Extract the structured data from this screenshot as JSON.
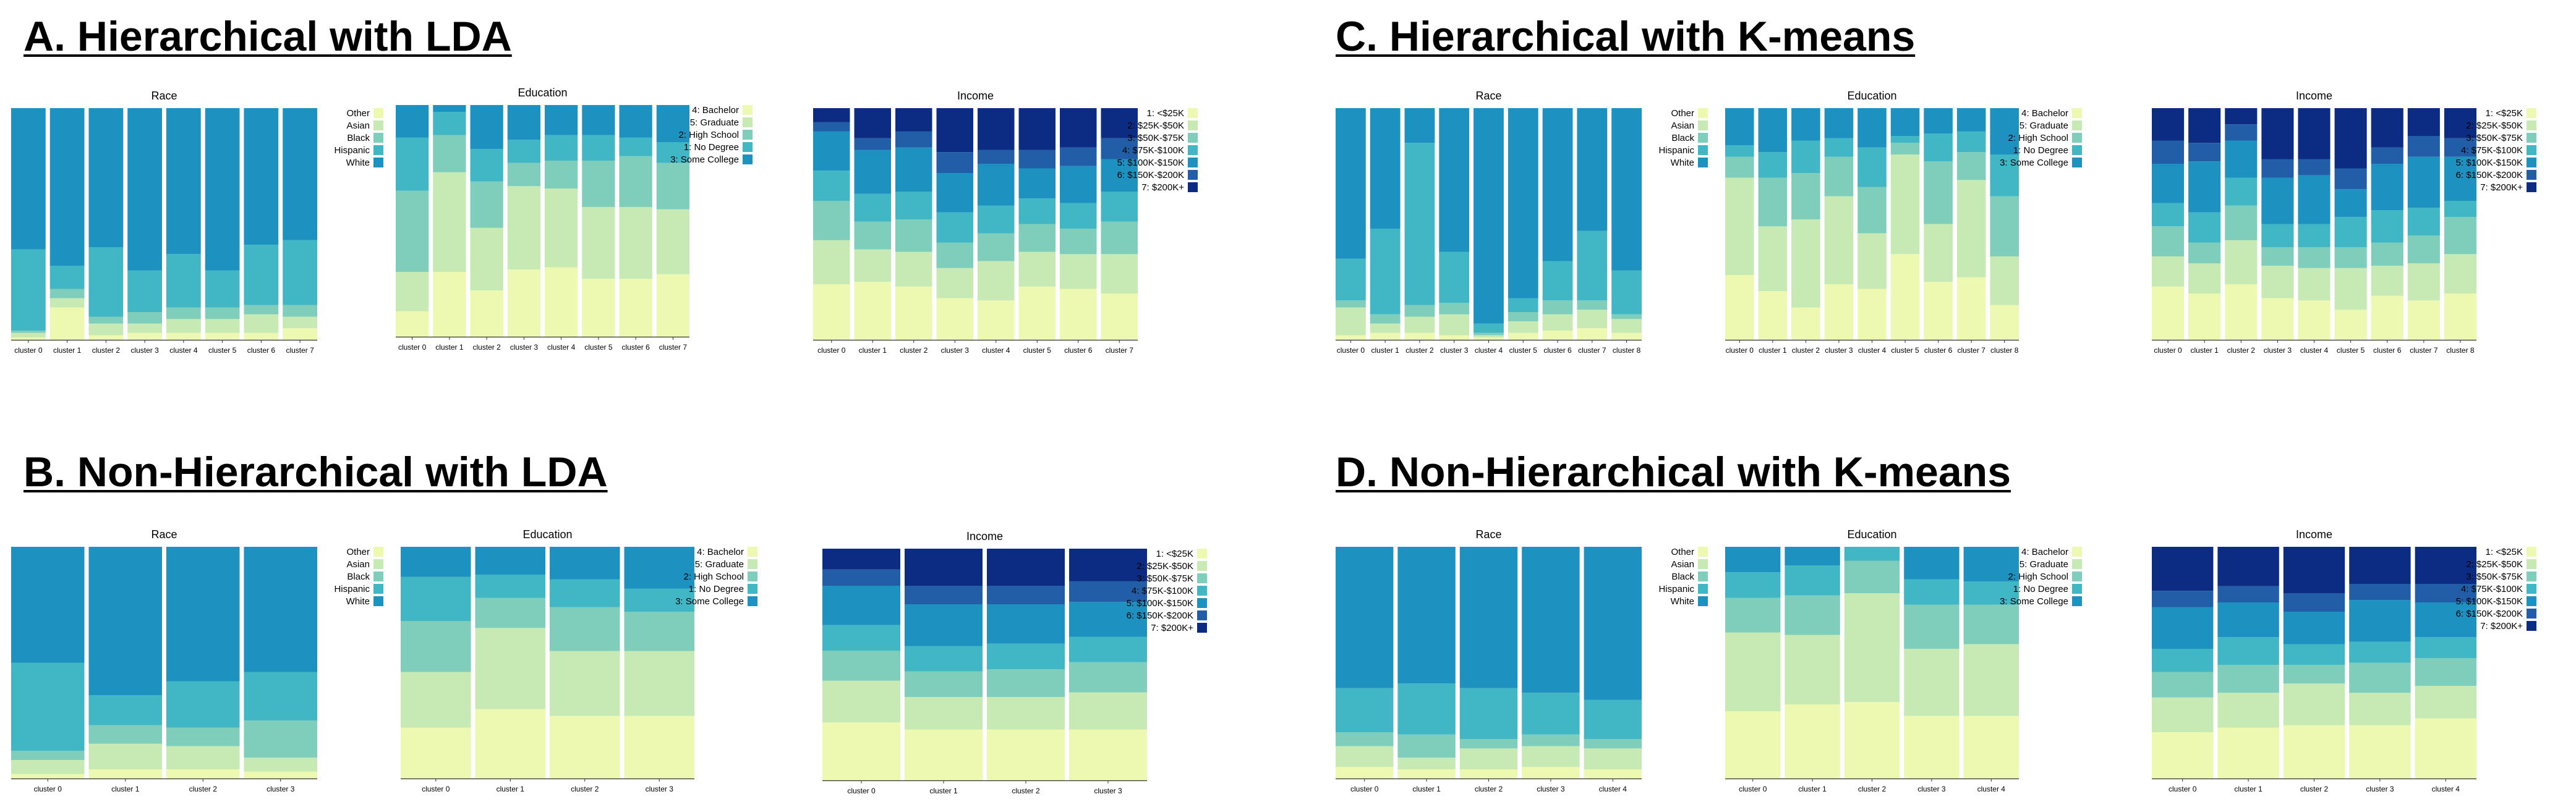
{
  "panels": [
    {
      "title": "A. Hierarchical with LDA"
    },
    {
      "title": "B. Non-Hierarchical with LDA"
    },
    {
      "title": "C. Hierarchical with K-means"
    },
    {
      "title": "D. Non-Hierarchical with K-means"
    }
  ],
  "legends": {
    "race": [
      "Other",
      "Asian",
      "Black",
      "Hispanic",
      "White"
    ],
    "education": [
      "4: Bachelor",
      "5: Graduate",
      "2: High School",
      "1: No Degree",
      "3: Some College"
    ],
    "income": [
      "1: <$25K",
      "2: $25K-$50K",
      "3: $50K-$75K",
      "4: $75K-$100K",
      "5: $100K-$150K",
      "6: $150K-$200K",
      "7: $200K+"
    ]
  },
  "colors": {
    "race": [
      "#edf8b1",
      "#c7e9b4",
      "#7fcdbb",
      "#41b6c4",
      "#1d91c0"
    ],
    "education": [
      "#edf8b1",
      "#c7e9b4",
      "#7fcdbb",
      "#41b6c4",
      "#1d91c0"
    ],
    "income": [
      "#edf8b1",
      "#c7e9b4",
      "#7fcdbb",
      "#41b6c4",
      "#1d91c0",
      "#225ea8",
      "#0c2c84"
    ]
  },
  "chart_data": [
    {
      "panel": "A",
      "type": "bar",
      "stacked": true,
      "title": "Race",
      "legend_key": "race",
      "categories": [
        "cluster 0",
        "cluster 1",
        "cluster 2",
        "cluster 3",
        "cluster 4",
        "cluster 5",
        "cluster 6",
        "cluster 7"
      ],
      "values": [
        [
          0.01,
          0.14,
          0.02,
          0.03,
          0.03,
          0.03,
          0.03,
          0.05
        ],
        [
          0.02,
          0.04,
          0.05,
          0.04,
          0.06,
          0.06,
          0.08,
          0.05
        ],
        [
          0.01,
          0.04,
          0.03,
          0.05,
          0.05,
          0.05,
          0.04,
          0.05
        ],
        [
          0.35,
          0.1,
          0.3,
          0.18,
          0.23,
          0.16,
          0.26,
          0.28
        ],
        [
          0.61,
          0.68,
          0.6,
          0.7,
          0.63,
          0.7,
          0.59,
          0.57
        ]
      ]
    },
    {
      "panel": "A",
      "type": "bar",
      "stacked": true,
      "title": "Education",
      "legend_key": "education",
      "categories": [
        "cluster 0",
        "cluster 1",
        "cluster 2",
        "cluster 3",
        "cluster 4",
        "cluster 5",
        "cluster 6",
        "cluster 7"
      ],
      "values": [
        [
          0.11,
          0.28,
          0.2,
          0.29,
          0.3,
          0.25,
          0.25,
          0.27
        ],
        [
          0.17,
          0.43,
          0.27,
          0.36,
          0.34,
          0.31,
          0.31,
          0.28
        ],
        [
          0.35,
          0.16,
          0.2,
          0.1,
          0.12,
          0.2,
          0.22,
          0.2
        ],
        [
          0.23,
          0.1,
          0.14,
          0.1,
          0.11,
          0.11,
          0.08,
          0.09
        ],
        [
          0.14,
          0.03,
          0.19,
          0.15,
          0.13,
          0.13,
          0.14,
          0.16
        ]
      ]
    },
    {
      "panel": "A",
      "type": "bar",
      "stacked": true,
      "title": "Income",
      "legend_key": "income",
      "categories": [
        "cluster 0",
        "cluster 1",
        "cluster 2",
        "cluster 3",
        "cluster 4",
        "cluster 5",
        "cluster 6",
        "cluster 7"
      ],
      "values": [
        [
          0.24,
          0.25,
          0.23,
          0.18,
          0.17,
          0.23,
          0.22,
          0.2
        ],
        [
          0.19,
          0.14,
          0.15,
          0.13,
          0.17,
          0.15,
          0.15,
          0.17
        ],
        [
          0.17,
          0.12,
          0.14,
          0.11,
          0.12,
          0.12,
          0.11,
          0.14
        ],
        [
          0.13,
          0.12,
          0.12,
          0.13,
          0.12,
          0.11,
          0.11,
          0.13
        ],
        [
          0.17,
          0.19,
          0.19,
          0.17,
          0.18,
          0.13,
          0.16,
          0.14
        ],
        [
          0.04,
          0.05,
          0.07,
          0.09,
          0.06,
          0.08,
          0.08,
          0.09
        ],
        [
          0.06,
          0.13,
          0.1,
          0.19,
          0.18,
          0.18,
          0.17,
          0.13
        ]
      ]
    },
    {
      "panel": "B",
      "type": "bar",
      "stacked": true,
      "title": "Race",
      "legend_key": "race",
      "categories": [
        "cluster 0",
        "cluster 1",
        "cluster 2",
        "cluster 3"
      ],
      "values": [
        [
          0.02,
          0.04,
          0.04,
          0.03
        ],
        [
          0.06,
          0.11,
          0.1,
          0.06
        ],
        [
          0.04,
          0.08,
          0.08,
          0.16
        ],
        [
          0.38,
          0.13,
          0.2,
          0.21
        ],
        [
          0.5,
          0.64,
          0.58,
          0.54
        ]
      ]
    },
    {
      "panel": "B",
      "type": "bar",
      "stacked": true,
      "title": "Education",
      "legend_key": "education",
      "categories": [
        "cluster 0",
        "cluster 1",
        "cluster 2",
        "cluster 3"
      ],
      "values": [
        [
          0.22,
          0.3,
          0.27,
          0.27
        ],
        [
          0.24,
          0.35,
          0.28,
          0.28
        ],
        [
          0.22,
          0.13,
          0.19,
          0.17
        ],
        [
          0.19,
          0.1,
          0.12,
          0.1
        ],
        [
          0.13,
          0.12,
          0.14,
          0.18
        ]
      ]
    },
    {
      "panel": "B",
      "type": "bar",
      "stacked": true,
      "title": "Income",
      "legend_key": "income",
      "categories": [
        "cluster 0",
        "cluster 1",
        "cluster 2",
        "cluster 3"
      ],
      "values": [
        [
          0.25,
          0.22,
          0.22,
          0.22
        ],
        [
          0.18,
          0.14,
          0.14,
          0.16
        ],
        [
          0.13,
          0.11,
          0.12,
          0.13
        ],
        [
          0.11,
          0.11,
          0.11,
          0.11
        ],
        [
          0.17,
          0.18,
          0.17,
          0.15
        ],
        [
          0.07,
          0.08,
          0.08,
          0.09
        ],
        [
          0.09,
          0.16,
          0.16,
          0.14
        ]
      ]
    },
    {
      "panel": "C",
      "type": "bar",
      "stacked": true,
      "title": "Race",
      "legend_key": "race",
      "categories": [
        "cluster 0",
        "cluster 1",
        "cluster 2",
        "cluster 3",
        "cluster 4",
        "cluster 5",
        "cluster 6",
        "cluster 7",
        "cluster 8"
      ],
      "values": [
        [
          0.02,
          0.03,
          0.03,
          0.02,
          0.01,
          0.03,
          0.04,
          0.05,
          0.03
        ],
        [
          0.12,
          0.04,
          0.07,
          0.09,
          0.01,
          0.05,
          0.07,
          0.08,
          0.06
        ],
        [
          0.03,
          0.04,
          0.05,
          0.05,
          0.01,
          0.04,
          0.06,
          0.04,
          0.02
        ],
        [
          0.18,
          0.37,
          0.7,
          0.22,
          0.04,
          0.06,
          0.17,
          0.3,
          0.19
        ],
        [
          0.65,
          0.52,
          0.15,
          0.62,
          0.93,
          0.82,
          0.66,
          0.53,
          0.7
        ]
      ]
    },
    {
      "panel": "C",
      "type": "bar",
      "stacked": true,
      "title": "Education",
      "legend_key": "education",
      "categories": [
        "cluster 0",
        "cluster 1",
        "cluster 2",
        "cluster 3",
        "cluster 4",
        "cluster 5",
        "cluster 6",
        "cluster 7",
        "cluster 8"
      ],
      "values": [
        [
          0.28,
          0.21,
          0.14,
          0.24,
          0.22,
          0.37,
          0.25,
          0.27,
          0.15
        ],
        [
          0.42,
          0.28,
          0.38,
          0.38,
          0.24,
          0.43,
          0.25,
          0.42,
          0.21
        ],
        [
          0.09,
          0.21,
          0.2,
          0.17,
          0.2,
          0.05,
          0.27,
          0.12,
          0.26
        ],
        [
          0.05,
          0.11,
          0.14,
          0.08,
          0.17,
          0.03,
          0.12,
          0.09,
          0.18
        ],
        [
          0.16,
          0.19,
          0.14,
          0.13,
          0.17,
          0.12,
          0.11,
          0.1,
          0.2
        ]
      ]
    },
    {
      "panel": "C",
      "type": "bar",
      "stacked": true,
      "title": "Income",
      "legend_key": "income",
      "categories": [
        "cluster 0",
        "cluster 1",
        "cluster 2",
        "cluster 3",
        "cluster 4",
        "cluster 5",
        "cluster 6",
        "cluster 7",
        "cluster 8"
      ],
      "values": [
        [
          0.23,
          0.2,
          0.24,
          0.18,
          0.17,
          0.13,
          0.19,
          0.17,
          0.2
        ],
        [
          0.13,
          0.13,
          0.19,
          0.14,
          0.14,
          0.18,
          0.13,
          0.16,
          0.17
        ],
        [
          0.13,
          0.09,
          0.15,
          0.08,
          0.09,
          0.09,
          0.1,
          0.12,
          0.16
        ],
        [
          0.1,
          0.13,
          0.12,
          0.1,
          0.1,
          0.13,
          0.14,
          0.12,
          0.07
        ],
        [
          0.17,
          0.22,
          0.16,
          0.2,
          0.21,
          0.12,
          0.2,
          0.22,
          0.19
        ],
        [
          0.1,
          0.08,
          0.07,
          0.08,
          0.07,
          0.09,
          0.07,
          0.09,
          0.08
        ],
        [
          0.14,
          0.15,
          0.07,
          0.22,
          0.22,
          0.26,
          0.17,
          0.12,
          0.13
        ]
      ]
    },
    {
      "panel": "D",
      "type": "bar",
      "stacked": true,
      "title": "Race",
      "legend_key": "race",
      "categories": [
        "cluster 0",
        "cluster 1",
        "cluster 2",
        "cluster 3",
        "cluster 4"
      ],
      "values": [
        [
          0.05,
          0.04,
          0.04,
          0.05,
          0.04
        ],
        [
          0.09,
          0.05,
          0.09,
          0.09,
          0.09
        ],
        [
          0.06,
          0.1,
          0.04,
          0.05,
          0.04
        ],
        [
          0.19,
          0.22,
          0.22,
          0.18,
          0.17
        ],
        [
          0.61,
          0.59,
          0.61,
          0.63,
          0.66
        ]
      ]
    },
    {
      "panel": "D",
      "type": "bar",
      "stacked": true,
      "title": "Education",
      "legend_key": "education",
      "categories": [
        "cluster 0",
        "cluster 1",
        "cluster 2",
        "cluster 3",
        "cluster 4"
      ],
      "values": [
        [
          0.29,
          0.32,
          0.33,
          0.27,
          0.27
        ],
        [
          0.34,
          0.3,
          0.47,
          0.29,
          0.31
        ],
        [
          0.15,
          0.17,
          0.14,
          0.19,
          0.17
        ],
        [
          0.11,
          0.13,
          0.06,
          0.11,
          0.1
        ],
        [
          0.11,
          0.08,
          0.0,
          0.14,
          0.15
        ]
      ]
    },
    {
      "panel": "D",
      "type": "bar",
      "stacked": true,
      "title": "Income",
      "legend_key": "income",
      "categories": [
        "cluster 0",
        "cluster 1",
        "cluster 2",
        "cluster 3",
        "cluster 4"
      ],
      "values": [
        [
          0.2,
          0.22,
          0.23,
          0.23,
          0.26
        ],
        [
          0.15,
          0.15,
          0.18,
          0.14,
          0.14
        ],
        [
          0.11,
          0.12,
          0.08,
          0.13,
          0.12
        ],
        [
          0.1,
          0.12,
          0.09,
          0.09,
          0.09
        ],
        [
          0.18,
          0.15,
          0.14,
          0.18,
          0.15
        ],
        [
          0.07,
          0.07,
          0.08,
          0.07,
          0.08
        ],
        [
          0.19,
          0.17,
          0.2,
          0.16,
          0.16
        ]
      ]
    }
  ]
}
